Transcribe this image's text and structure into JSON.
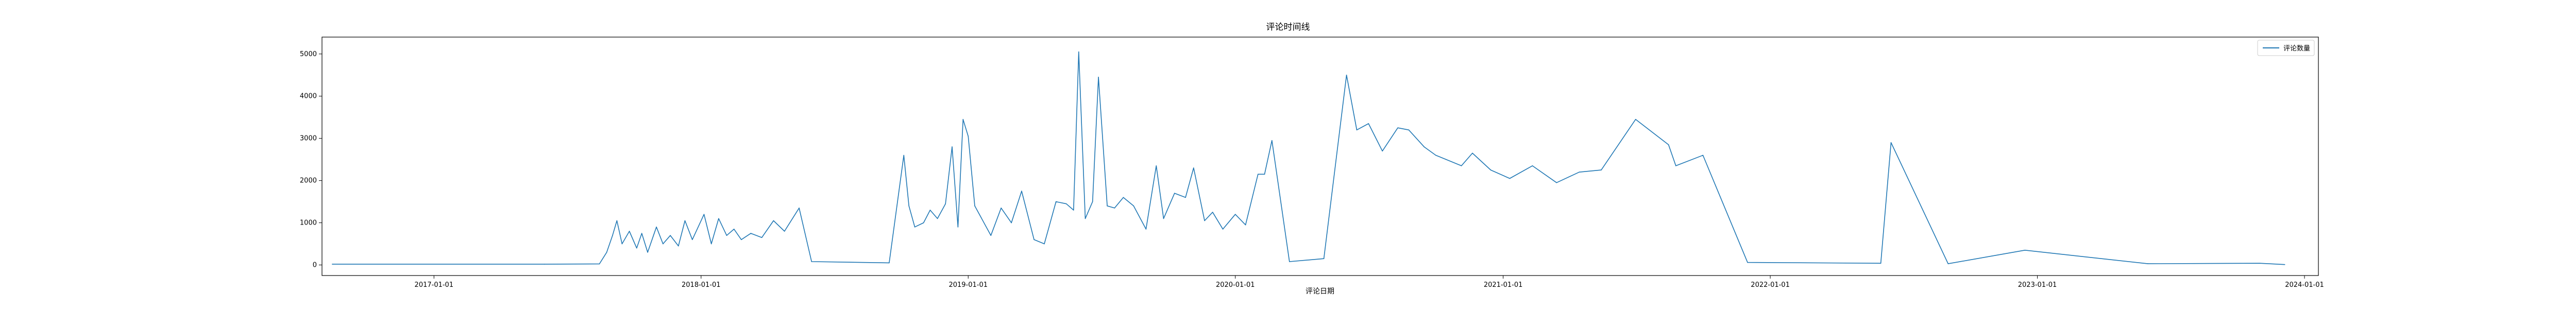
{
  "chart_data": {
    "type": "line",
    "title": "评论时间线",
    "xlabel": "评论日期",
    "ylabel": "",
    "xlim": [
      "2016-08-01",
      "2024-01-20"
    ],
    "ylim": [
      -250,
      5400
    ],
    "grid": false,
    "legend_position": "top-right",
    "line_color": "#1f77b4",
    "x_ticks": [
      "2017-01-01",
      "2018-01-01",
      "2019-01-01",
      "2020-01-01",
      "2021-01-01",
      "2022-01-01",
      "2023-01-01",
      "2024-01-01"
    ],
    "y_ticks": [
      "0",
      "1000",
      "2000",
      "3000",
      "4000",
      "5000"
    ],
    "series": [
      {
        "name": "评论数量",
        "points": [
          [
            "2016-08-15",
            20
          ],
          [
            "2017-06-01",
            20
          ],
          [
            "2017-08-15",
            25
          ],
          [
            "2017-08-25",
            300
          ],
          [
            "2017-09-02",
            700
          ],
          [
            "2017-09-08",
            1050
          ],
          [
            "2017-09-15",
            500
          ],
          [
            "2017-09-25",
            800
          ],
          [
            "2017-10-05",
            400
          ],
          [
            "2017-10-12",
            750
          ],
          [
            "2017-10-20",
            300
          ],
          [
            "2017-11-01",
            900
          ],
          [
            "2017-11-10",
            500
          ],
          [
            "2017-11-20",
            700
          ],
          [
            "2017-12-01",
            450
          ],
          [
            "2017-12-10",
            1050
          ],
          [
            "2017-12-20",
            600
          ],
          [
            "2018-01-05",
            1200
          ],
          [
            "2018-01-15",
            500
          ],
          [
            "2018-01-25",
            1100
          ],
          [
            "2018-02-05",
            700
          ],
          [
            "2018-02-15",
            850
          ],
          [
            "2018-02-25",
            600
          ],
          [
            "2018-03-10",
            750
          ],
          [
            "2018-03-25",
            650
          ],
          [
            "2018-04-10",
            1050
          ],
          [
            "2018-04-25",
            800
          ],
          [
            "2018-05-15",
            1350
          ],
          [
            "2018-06-01",
            80
          ],
          [
            "2018-09-15",
            50
          ],
          [
            "2018-10-05",
            2600
          ],
          [
            "2018-10-12",
            1400
          ],
          [
            "2018-10-20",
            900
          ],
          [
            "2018-11-01",
            1000
          ],
          [
            "2018-11-10",
            1300
          ],
          [
            "2018-11-20",
            1100
          ],
          [
            "2018-12-01",
            1450
          ],
          [
            "2018-12-10",
            2800
          ],
          [
            "2018-12-18",
            900
          ],
          [
            "2018-12-25",
            3450
          ],
          [
            "2019-01-01",
            3050
          ],
          [
            "2019-01-10",
            1400
          ],
          [
            "2019-02-01",
            700
          ],
          [
            "2019-02-15",
            1350
          ],
          [
            "2019-03-01",
            1000
          ],
          [
            "2019-03-15",
            1750
          ],
          [
            "2019-04-01",
            600
          ],
          [
            "2019-04-15",
            500
          ],
          [
            "2019-05-01",
            1500
          ],
          [
            "2019-05-15",
            1450
          ],
          [
            "2019-05-25",
            1300
          ],
          [
            "2019-06-01",
            5050
          ],
          [
            "2019-06-10",
            1100
          ],
          [
            "2019-06-20",
            1500
          ],
          [
            "2019-06-28",
            4450
          ],
          [
            "2019-07-10",
            1400
          ],
          [
            "2019-07-20",
            1350
          ],
          [
            "2019-08-01",
            1600
          ],
          [
            "2019-08-15",
            1400
          ],
          [
            "2019-09-01",
            850
          ],
          [
            "2019-09-15",
            2350
          ],
          [
            "2019-09-25",
            1100
          ],
          [
            "2019-10-10",
            1700
          ],
          [
            "2019-10-25",
            1600
          ],
          [
            "2019-11-05",
            2300
          ],
          [
            "2019-11-20",
            1050
          ],
          [
            "2019-12-01",
            1250
          ],
          [
            "2019-12-15",
            850
          ],
          [
            "2020-01-01",
            1200
          ],
          [
            "2020-01-15",
            950
          ],
          [
            "2020-02-01",
            2150
          ],
          [
            "2020-02-10",
            2150
          ],
          [
            "2020-02-20",
            2950
          ],
          [
            "2020-03-15",
            80
          ],
          [
            "2020-05-01",
            150
          ],
          [
            "2020-06-01",
            4500
          ],
          [
            "2020-06-15",
            3200
          ],
          [
            "2020-07-01",
            3350
          ],
          [
            "2020-07-20",
            2700
          ],
          [
            "2020-08-10",
            3250
          ],
          [
            "2020-08-25",
            3200
          ],
          [
            "2020-09-15",
            2800
          ],
          [
            "2020-10-01",
            2600
          ],
          [
            "2020-10-15",
            2500
          ],
          [
            "2020-11-05",
            2350
          ],
          [
            "2020-11-20",
            2650
          ],
          [
            "2020-12-15",
            2250
          ],
          [
            "2021-01-10",
            2050
          ],
          [
            "2021-02-10",
            2350
          ],
          [
            "2021-03-15",
            1950
          ],
          [
            "2021-04-15",
            2200
          ],
          [
            "2021-05-15",
            2250
          ],
          [
            "2021-07-01",
            3450
          ],
          [
            "2021-08-15",
            2850
          ],
          [
            "2021-08-25",
            2350
          ],
          [
            "2021-10-01",
            2600
          ],
          [
            "2021-12-01",
            60
          ],
          [
            "2022-06-01",
            40
          ],
          [
            "2022-06-15",
            2900
          ],
          [
            "2022-09-01",
            30
          ],
          [
            "2022-12-15",
            350
          ],
          [
            "2023-06-01",
            30
          ],
          [
            "2023-11-01",
            40
          ],
          [
            "2023-12-05",
            10
          ]
        ]
      }
    ]
  }
}
